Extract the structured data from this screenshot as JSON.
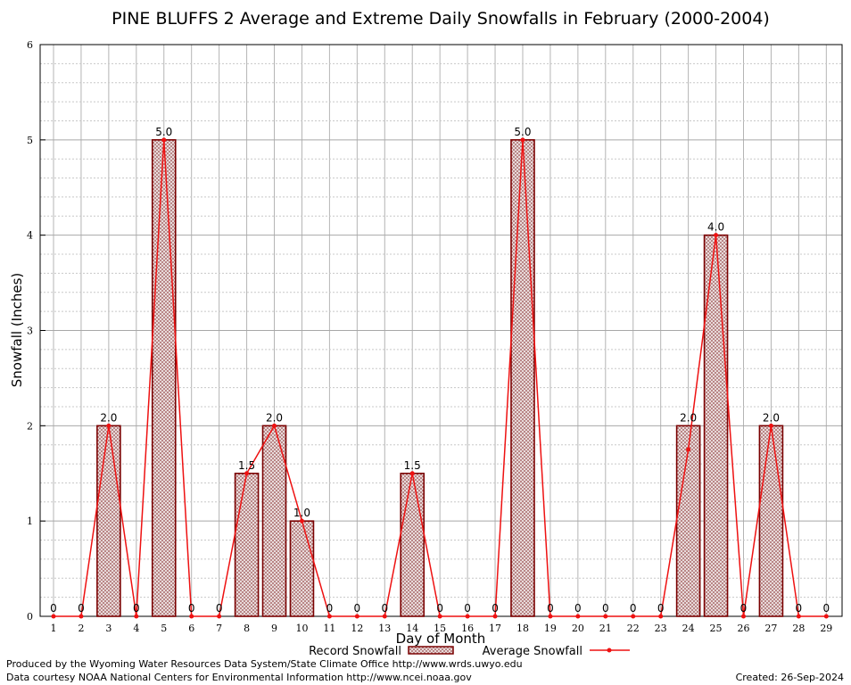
{
  "chart_data": {
    "type": "bar",
    "title": "PINE BLUFFS 2 Average and Extreme Daily Snowfalls in February (2000-2004)",
    "xlabel": "Day of Month",
    "ylabel": "Snowfall (Inches)",
    "ylim": [
      0,
      6
    ],
    "yticks": [
      "0",
      "1",
      "2",
      "3",
      "4",
      "5",
      "6"
    ],
    "grid": true,
    "legend_position": "bottom",
    "categories": [
      "1",
      "2",
      "3",
      "4",
      "5",
      "6",
      "7",
      "8",
      "9",
      "10",
      "11",
      "12",
      "13",
      "14",
      "15",
      "16",
      "17",
      "18",
      "19",
      "20",
      "21",
      "22",
      "23",
      "24",
      "25",
      "26",
      "27",
      "28",
      "29"
    ],
    "series": [
      {
        "name": "Record Snowfall",
        "kind": "bar",
        "color": "#7a0000",
        "values": [
          0,
          0,
          2.0,
          0,
          5.0,
          0,
          0,
          1.5,
          2.0,
          1.0,
          0,
          0,
          0,
          1.5,
          0,
          0,
          0,
          5.0,
          0,
          0,
          0,
          0,
          0,
          2.0,
          4.0,
          0,
          2.0,
          0,
          0
        ],
        "labels": [
          "0",
          "0",
          "2.0",
          "0",
          "5.0",
          "0",
          "0",
          "1.5",
          "2.0",
          "1.0",
          "0",
          "0",
          "0",
          "1.5",
          "0",
          "0",
          "0",
          "5.0",
          "0",
          "0",
          "0",
          "0",
          "0",
          "2.0",
          "4.0",
          "0",
          "2.0",
          "0",
          "0"
        ]
      },
      {
        "name": "Average Snowfall",
        "kind": "line",
        "color": "#ee1111",
        "values": [
          0,
          0,
          2.0,
          0,
          5.0,
          0,
          0,
          1.5,
          2.0,
          1.0,
          0,
          0,
          0,
          1.5,
          0,
          0,
          0,
          5.0,
          0,
          0,
          0,
          0,
          0,
          1.75,
          4.0,
          0,
          2.0,
          0,
          0
        ]
      }
    ]
  },
  "footer": {
    "produced_by": "Produced by the Wyoming Water Resources Data System/State Climate Office http://www.wrds.uwyo.edu",
    "courtesy": "Data courtesy NOAA National Centers for Environmental Information http://www.ncei.noaa.gov",
    "created": "Created:  26-Sep-2024"
  }
}
